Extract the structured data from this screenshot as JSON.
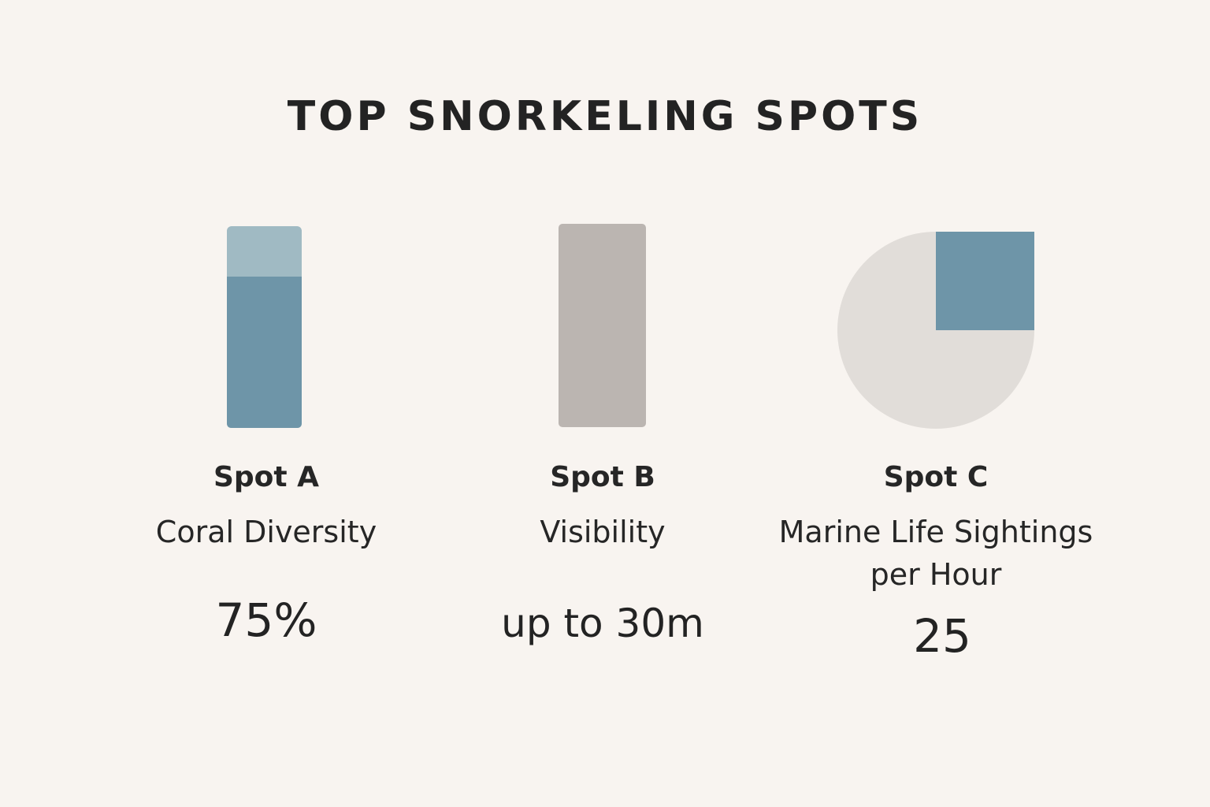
{
  "title": "TOP SNORKELING SPOTS",
  "colors": {
    "background": "#f8f4f0",
    "blue_fill": "#6e95a8",
    "blue_light": "#a0bac3",
    "gray_bar": "#bbb5b1",
    "pie_gray": "#e1ddd9",
    "text": "#252525"
  },
  "chart_data": [
    {
      "type": "bar",
      "spot": "Spot A",
      "metric": "Coral Diversity",
      "value_label": "75%",
      "value": 75,
      "unit": "%",
      "ylim": [
        0,
        100
      ]
    },
    {
      "type": "bar",
      "spot": "Spot B",
      "metric": "Visibility",
      "value_label": "up to 30m",
      "value": 30,
      "unit": "m",
      "ylim": [
        0,
        30
      ]
    },
    {
      "type": "pie",
      "spot": "Spot C",
      "metric": "Marine Life Sightings per Hour",
      "value_label": "25",
      "value": 25,
      "highlight_fraction": 0.25
    }
  ]
}
